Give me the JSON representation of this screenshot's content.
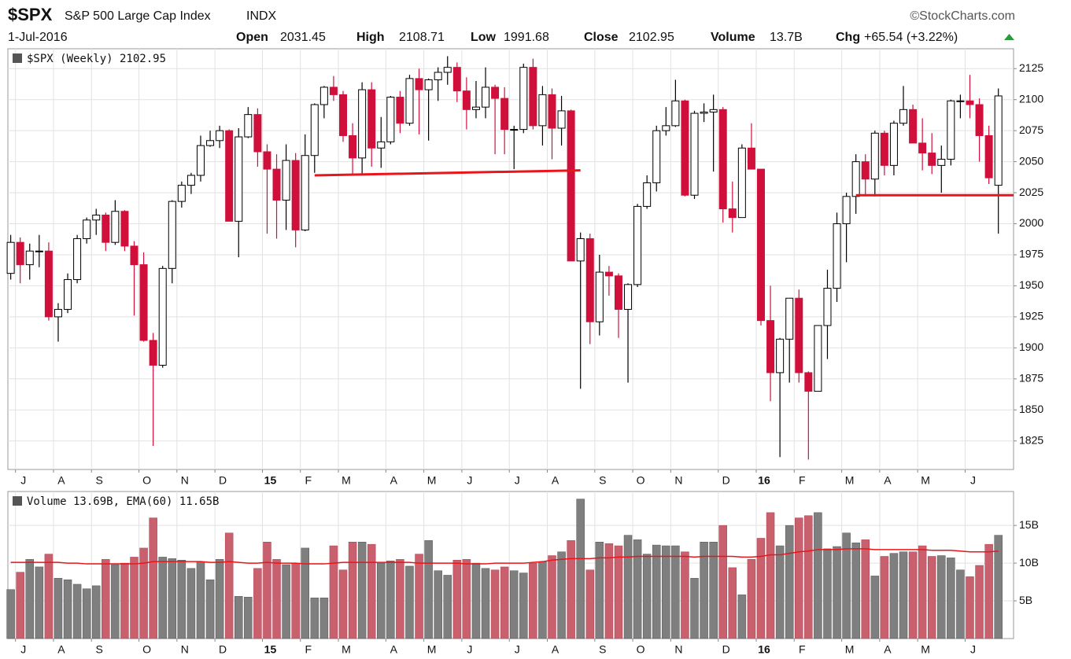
{
  "header": {
    "symbol": "$SPX",
    "name": "S&P 500 Large Cap Index",
    "exchange": "INDX",
    "date": "1-Jul-2016",
    "open_label": "Open",
    "open": "2031.45",
    "high_label": "High",
    "high": "2108.71",
    "low_label": "Low",
    "low": "1991.68",
    "close_label": "Close",
    "close": "2102.95",
    "volume_label": "Volume",
    "volume": "13.7B",
    "chg_label": "Chg",
    "chg": "+65.54 (+3.22%)",
    "source": "©StockCharts.com"
  },
  "chart_data": [
    {
      "type": "candlestick",
      "legend": "$SPX (Weekly) 2102.95",
      "up_color": "#ffffff",
      "down_color": "#d0103a",
      "line_color": "#e8151b",
      "ylim": [
        1802,
        2141
      ],
      "yticks": [
        1825,
        1850,
        1875,
        1900,
        1925,
        1950,
        1975,
        2000,
        2025,
        2050,
        2075,
        2100,
        2125
      ],
      "xlim": [
        -0.3,
        105.6
      ],
      "xticks": [
        {
          "value": 1,
          "label": "J"
        },
        {
          "value": 5,
          "label": "A"
        },
        {
          "value": 9,
          "label": "S"
        },
        {
          "value": 14,
          "label": "O"
        },
        {
          "value": 18,
          "label": "N"
        },
        {
          "value": 22,
          "label": "D"
        },
        {
          "value": 27,
          "label": "15"
        },
        {
          "value": 31,
          "label": "F"
        },
        {
          "value": 35,
          "label": "M"
        },
        {
          "value": 40,
          "label": "A"
        },
        {
          "value": 44,
          "label": "M"
        },
        {
          "value": 48,
          "label": "J"
        },
        {
          "value": 53,
          "label": "J"
        },
        {
          "value": 57,
          "label": "A"
        },
        {
          "value": 62,
          "label": "S"
        },
        {
          "value": 66,
          "label": "O"
        },
        {
          "value": 70,
          "label": "N"
        },
        {
          "value": 75,
          "label": "D"
        },
        {
          "value": 79,
          "label": "16"
        },
        {
          "value": 83,
          "label": "F"
        },
        {
          "value": 88,
          "label": "M"
        },
        {
          "value": 92,
          "label": "A"
        },
        {
          "value": 96,
          "label": "M"
        },
        {
          "value": 101,
          "label": "J"
        }
      ],
      "open": [
        1960,
        1985,
        1967,
        1978,
        1978,
        1925,
        1931,
        1955,
        1988,
        2003,
        2007,
        1985,
        2010,
        1982,
        1967,
        1906,
        1886,
        1964,
        2018,
        2031,
        2039,
        2063,
        2067,
        2075,
        2002,
        2070,
        2088,
        2058,
        2044,
        2019,
        2051,
        1995,
        2055,
        2096,
        2110,
        2104,
        2071,
        2053,
        2108,
        2061,
        2066,
        2102,
        2081,
        2117,
        2108,
        2116,
        2122,
        2126,
        2107,
        2092,
        2094,
        2110,
        2101,
        2076,
        2076,
        2126,
        2079,
        2104,
        2077,
        2091,
        1970,
        1988,
        1921,
        1961,
        1958,
        1931,
        1951,
        2014,
        2033,
        2075,
        2079,
        2099,
        2023,
        2089,
        2090,
        2092,
        2012,
        2005,
        2061,
        2044,
        1922,
        1880,
        1907,
        1940,
        1880,
        1865,
        1918,
        1948,
        2000,
        2022,
        2050,
        2036,
        2073,
        2047,
        2081,
        2092,
        2065,
        2057,
        2047,
        2052,
        2099,
        2099,
        2096,
        2071,
        2031
      ],
      "high": [
        1991,
        1989,
        1984,
        1991,
        1985,
        1936,
        1960,
        1991,
        2005,
        2012,
        2009,
        2019,
        2011,
        1986,
        1977,
        1912,
        1966,
        2019,
        2034,
        2041,
        2071,
        2075,
        2079,
        2076,
        2077,
        2094,
        2093,
        2064,
        2056,
        2064,
        2057,
        2072,
        2097,
        2111,
        2119,
        2107,
        2081,
        2114,
        2114,
        2086,
        2103,
        2107,
        2120,
        2125,
        2117,
        2126,
        2135,
        2130,
        2118,
        2115,
        2126,
        2112,
        2110,
        2079,
        2129,
        2133,
        2111,
        2109,
        2103,
        2092,
        1993,
        1992,
        1975,
        1966,
        1960,
        1952,
        2016,
        2039,
        2079,
        2094,
        2116,
        2100,
        2091,
        2097,
        2104,
        2094,
        2034,
        2064,
        2081,
        2044,
        1950,
        1908,
        1940,
        1947,
        1881,
        1918,
        1963,
        2009,
        2025,
        2056,
        2056,
        2075,
        2075,
        2083,
        2111,
        2096,
        2085,
        2073,
        2063,
        2100,
        2104,
        2120,
        2101,
        2079,
        2109
      ],
      "low": [
        1955,
        1952,
        1955,
        1965,
        1922,
        1905,
        1928,
        1952,
        1984,
        1991,
        1978,
        1983,
        1978,
        1926,
        1905,
        1821,
        1884,
        1952,
        2013,
        2024,
        2034,
        2062,
        2061,
        2002,
        1973,
        2069,
        2046,
        1992,
        1988,
        1995,
        1981,
        1994,
        2041,
        2085,
        2099,
        2066,
        2040,
        2040,
        2046,
        2045,
        2064,
        2073,
        2079,
        2072,
        2067,
        2099,
        2112,
        2098,
        2076,
        2085,
        2085,
        2056,
        2056,
        2044,
        2073,
        2076,
        2063,
        2052,
        2063,
        1970,
        1867,
        1903,
        1910,
        1942,
        1908,
        1872,
        1949,
        2012,
        2026,
        2071,
        2078,
        2022,
        2020,
        2082,
        2042,
        2001,
        1993,
        2005,
        2044,
        1918,
        1857,
        1812,
        1872,
        1872,
        1810,
        1865,
        1891,
        1937,
        1969,
        2008,
        2022,
        2022,
        2039,
        2039,
        2079,
        2065,
        2043,
        2040,
        2025,
        2047,
        2085,
        2085,
        2050,
        2032,
        1992
      ],
      "close": [
        1985,
        1967,
        1978,
        1978,
        1925,
        1931,
        1955,
        1988,
        2003,
        2007,
        1985,
        2010,
        1982,
        1967,
        1906,
        1886,
        1964,
        2018,
        2031,
        2039,
        2063,
        2067,
        2075,
        2002,
        2070,
        2088,
        2058,
        2044,
        2019,
        2051,
        1995,
        2055,
        2096,
        2110,
        2104,
        2071,
        2053,
        2108,
        2061,
        2066,
        2102,
        2081,
        2117,
        2108,
        2116,
        2122,
        2126,
        2107,
        2092,
        2094,
        2110,
        2101,
        2076,
        2076,
        2126,
        2079,
        2104,
        2077,
        2091,
        1970,
        1988,
        1921,
        1961,
        1958,
        1931,
        1951,
        2014,
        2033,
        2075,
        2079,
        2099,
        2023,
        2089,
        2090,
        2092,
        2012,
        2005,
        2061,
        2044,
        1922,
        1880,
        1907,
        1940,
        1880,
        1865,
        1918,
        1948,
        2000,
        2022,
        2050,
        2036,
        2073,
        2047,
        2081,
        2092,
        2065,
        2057,
        2047,
        2052,
        2099,
        2099,
        2096,
        2071,
        2037,
        2103
      ],
      "trend_lines": [
        {
          "x": [
            32,
            60
          ],
          "y": [
            2039,
            2043
          ]
        },
        {
          "x": [
            89,
            105.6
          ],
          "y": [
            2023,
            2023
          ]
        }
      ]
    },
    {
      "type": "bar",
      "legend": "Volume 13.69B, EMA(60) 11.65B",
      "up_color": "#7f7f7f",
      "down_color": "#c9606d",
      "ylim": [
        0,
        19.5
      ],
      "yticks": [
        {
          "value": 5,
          "label": "5B"
        },
        {
          "value": 10,
          "label": "10B"
        },
        {
          "value": 15,
          "label": "15B"
        }
      ],
      "xlim": [
        -0.3,
        105.6
      ],
      "xticks": [
        {
          "value": 1,
          "label": "J"
        },
        {
          "value": 5,
          "label": "A"
        },
        {
          "value": 9,
          "label": "S"
        },
        {
          "value": 14,
          "label": "O"
        },
        {
          "value": 18,
          "label": "N"
        },
        {
          "value": 22,
          "label": "D"
        },
        {
          "value": 27,
          "label": "15"
        },
        {
          "value": 31,
          "label": "F"
        },
        {
          "value": 35,
          "label": "M"
        },
        {
          "value": 40,
          "label": "A"
        },
        {
          "value": 44,
          "label": "M"
        },
        {
          "value": 48,
          "label": "J"
        },
        {
          "value": 53,
          "label": "J"
        },
        {
          "value": 57,
          "label": "A"
        },
        {
          "value": 62,
          "label": "S"
        },
        {
          "value": 66,
          "label": "O"
        },
        {
          "value": 70,
          "label": "N"
        },
        {
          "value": 75,
          "label": "D"
        },
        {
          "value": 79,
          "label": "16"
        },
        {
          "value": 83,
          "label": "F"
        },
        {
          "value": 88,
          "label": "M"
        },
        {
          "value": 92,
          "label": "A"
        },
        {
          "value": 96,
          "label": "M"
        },
        {
          "value": 101,
          "label": "J"
        }
      ],
      "series": [
        {
          "name": "Volume",
          "values": [
            6.5,
            8.8,
            10.5,
            9.5,
            11.2,
            8.0,
            7.8,
            7.2,
            6.6,
            7.0,
            10.5,
            9.8,
            10.0,
            10.8,
            12.0,
            16.0,
            10.8,
            10.6,
            10.4,
            9.3,
            10.2,
            7.8,
            10.5,
            14.0,
            5.6,
            5.5,
            9.3,
            12.8,
            10.5,
            9.8,
            10.0,
            12.0,
            5.4,
            5.4,
            12.3,
            9.1,
            12.8,
            12.8,
            12.5,
            10.0,
            10.3,
            10.5,
            9.6,
            11.2,
            13.0,
            9.0,
            8.4,
            10.4,
            10.5,
            10.0,
            9.3,
            9.1,
            9.5,
            9.0,
            8.7,
            10.0,
            10.2,
            11.0,
            11.5,
            13.0,
            18.5,
            9.1,
            12.8,
            12.6,
            12.3,
            13.7,
            13.1,
            11.2,
            12.4,
            12.3,
            12.3,
            11.5,
            8.0,
            12.8,
            12.8,
            15.0,
            9.4,
            5.8,
            10.5,
            13.3,
            16.7,
            12.3,
            15.0,
            16.0,
            16.3,
            16.7,
            11.9,
            12.2,
            14.0,
            12.7,
            13.1,
            8.3,
            10.9,
            11.3,
            11.5,
            11.5,
            12.3,
            10.9,
            11.0,
            10.7,
            9.1,
            8.2,
            9.7,
            12.5,
            13.7
          ]
        },
        {
          "name": "EMA(60)",
          "color": "#e8151b",
          "values": [
            10.1,
            10.1,
            10.1,
            10.1,
            10.1,
            10.1,
            10.0,
            10.0,
            9.9,
            9.9,
            9.9,
            9.9,
            9.9,
            9.9,
            10.0,
            10.2,
            10.2,
            10.2,
            10.2,
            10.2,
            10.2,
            10.1,
            10.1,
            10.2,
            10.1,
            10.0,
            10.0,
            10.1,
            10.0,
            10.0,
            10.0,
            9.9,
            9.9,
            9.9,
            10.0,
            10.1,
            10.1,
            10.1,
            10.1,
            10.1,
            10.1,
            10.1,
            10.1,
            10.0,
            10.0,
            10.0,
            10.0,
            10.0,
            9.9,
            9.9,
            9.9,
            10.0,
            10.0,
            10.0,
            10.0,
            10.1,
            10.2,
            10.4,
            10.5,
            10.6,
            10.6,
            10.6,
            10.7,
            10.7,
            10.8,
            10.8,
            10.9,
            10.9,
            10.9,
            10.9,
            10.9,
            10.9,
            10.8,
            10.9,
            10.9,
            10.9,
            10.9,
            10.8,
            10.8,
            10.9,
            11.1,
            11.1,
            11.3,
            11.5,
            11.6,
            11.8,
            11.8,
            11.8,
            11.9,
            11.9,
            11.9,
            11.8,
            11.8,
            11.8,
            11.8,
            11.8,
            11.8,
            11.7,
            11.7,
            11.7,
            11.6,
            11.5,
            11.5,
            11.5,
            11.6
          ]
        }
      ]
    }
  ]
}
